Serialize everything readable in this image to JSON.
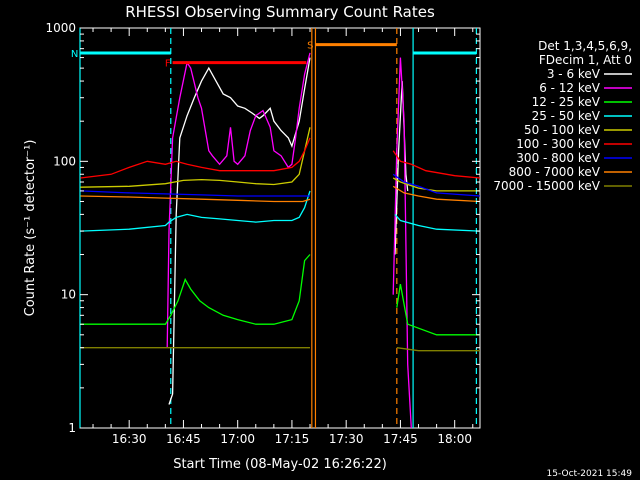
{
  "chart_data": {
    "type": "line",
    "title": "RHESSI Observing Summary Count Rates",
    "xlabel": "Start Time (08-May-02 16:26:22)",
    "ylabel": "Count Rate (s⁻¹ detector⁻¹)",
    "yscale": "log",
    "ylim": [
      1,
      1000
    ],
    "xlim_minutes": [
      16.4,
      127.0
    ],
    "x_ticks": [
      {
        "m": 30,
        "label": "16:30"
      },
      {
        "m": 45,
        "label": "16:45"
      },
      {
        "m": 60,
        "label": "17:00"
      },
      {
        "m": 75,
        "label": "17:15"
      },
      {
        "m": 90,
        "label": "17:30"
      },
      {
        "m": 105,
        "label": "17:45"
      },
      {
        "m": 120,
        "label": "18:00"
      }
    ],
    "y_ticks": [
      {
        "v": 1,
        "label": "1"
      },
      {
        "v": 10,
        "label": "10"
      },
      {
        "v": 100,
        "label": "100"
      },
      {
        "v": 1000,
        "label": "1000"
      }
    ],
    "legend_header": [
      "Det 1,3,4,5,6,9,",
      "FDecim 1, Att 0"
    ],
    "legend_position": "top-right",
    "series": [
      {
        "name": "3 - 6 keV",
        "color": "#ffffff",
        "segments": [
          [
            [
              41.0,
              1.5
            ],
            [
              42.0,
              1.8
            ],
            [
              43.0,
              40
            ],
            [
              44.0,
              150
            ],
            [
              46.0,
              220
            ],
            [
              48.0,
              300
            ],
            [
              50.0,
              400
            ],
            [
              52.0,
              500
            ],
            [
              54.0,
              400
            ],
            [
              56.0,
              320
            ],
            [
              58.0,
              300
            ],
            [
              60.0,
              260
            ],
            [
              62.0,
              250
            ],
            [
              64.0,
              230
            ],
            [
              66.0,
              210
            ],
            [
              67.0,
              220
            ],
            [
              69.0,
              250
            ],
            [
              70.0,
              200
            ],
            [
              72.0,
              170
            ],
            [
              74.0,
              150
            ],
            [
              75.0,
              130
            ],
            [
              77.0,
              200
            ],
            [
              78.5,
              350
            ],
            [
              79.5,
              500
            ],
            [
              80.0,
              600
            ]
          ],
          [
            [
              103.5,
              20
            ],
            [
              104.5,
              120
            ],
            [
              105.5,
              400
            ],
            [
              106.5,
              80
            ],
            [
              107.0,
              60
            ]
          ]
        ]
      },
      {
        "name": "6 - 12 keV",
        "color": "#ff00ff",
        "segments": [
          [
            [
              40.5,
              4
            ],
            [
              41.0,
              30
            ],
            [
              42.0,
              150
            ],
            [
              44.0,
              300
            ],
            [
              46.0,
              550
            ],
            [
              47.0,
              500
            ],
            [
              49.0,
              300
            ],
            [
              50.0,
              250
            ],
            [
              52.0,
              120
            ],
            [
              53.0,
              110
            ],
            [
              55.0,
              95
            ],
            [
              57.0,
              110
            ],
            [
              58.0,
              180
            ],
            [
              59.0,
              100
            ],
            [
              60.0,
              95
            ],
            [
              62.0,
              110
            ],
            [
              63.5,
              170
            ],
            [
              65.0,
              220
            ],
            [
              67.0,
              240
            ],
            [
              69.0,
              180
            ],
            [
              70.0,
              120
            ],
            [
              72.0,
              110
            ],
            [
              74.0,
              90
            ],
            [
              75.0,
              95
            ],
            [
              76.0,
              150
            ],
            [
              77.0,
              250
            ],
            [
              78.5,
              450
            ],
            [
              80.0,
              650
            ]
          ],
          [
            [
              103.0,
              10
            ],
            [
              104.0,
              120
            ],
            [
              105.0,
              600
            ],
            [
              106.0,
              200
            ],
            [
              107.0,
              3
            ],
            [
              108.0,
              1
            ]
          ]
        ]
      },
      {
        "name": "12 - 25 keV",
        "color": "#00ff00",
        "segments": [
          [
            [
              16.5,
              6
            ],
            [
              30.0,
              6
            ],
            [
              40.0,
              6
            ],
            [
              41.5,
              7
            ],
            [
              43.5,
              9
            ],
            [
              45.5,
              13
            ],
            [
              47.0,
              11
            ],
            [
              49.5,
              9
            ],
            [
              52.0,
              8
            ],
            [
              56.0,
              7
            ],
            [
              60.0,
              6.5
            ],
            [
              65.0,
              6
            ],
            [
              70.0,
              6
            ],
            [
              75.0,
              6.5
            ],
            [
              77.0,
              9
            ],
            [
              78.5,
              18
            ],
            [
              80.0,
              20
            ]
          ],
          [
            [
              104.0,
              8
            ],
            [
              105.0,
              12
            ],
            [
              107.0,
              6
            ],
            [
              115.0,
              5
            ],
            [
              127.0,
              5
            ]
          ]
        ]
      },
      {
        "name": "25 - 50 keV",
        "color": "#00ffff",
        "segments": [
          [
            [
              16.5,
              30
            ],
            [
              30.0,
              31
            ],
            [
              40.0,
              33
            ],
            [
              41.0,
              35
            ],
            [
              43.0,
              38
            ],
            [
              46.0,
              40
            ],
            [
              50.0,
              38
            ],
            [
              55.0,
              37
            ],
            [
              60.0,
              36
            ],
            [
              65.0,
              35
            ],
            [
              70.0,
              36
            ],
            [
              75.0,
              36
            ],
            [
              77.0,
              38
            ],
            [
              78.5,
              45
            ],
            [
              80.0,
              60
            ]
          ],
          [
            [
              103.5,
              40
            ],
            [
              105.0,
              36
            ],
            [
              110.0,
              33
            ],
            [
              115.0,
              31
            ],
            [
              127.0,
              30
            ]
          ]
        ]
      },
      {
        "name": "50 - 100 keV",
        "color": "#cccc00",
        "segments": [
          [
            [
              16.5,
              64
            ],
            [
              30.0,
              65
            ],
            [
              40.0,
              68
            ],
            [
              45.0,
              72
            ],
            [
              50.0,
              73
            ],
            [
              55.0,
              72
            ],
            [
              60.0,
              70
            ],
            [
              65.0,
              68
            ],
            [
              70.0,
              67
            ],
            [
              75.0,
              70
            ],
            [
              77.0,
              80
            ],
            [
              78.5,
              120
            ],
            [
              80.0,
              180
            ]
          ],
          [
            [
              103.0,
              75
            ],
            [
              105.0,
              70
            ],
            [
              110.0,
              63
            ],
            [
              115.0,
              60
            ],
            [
              127.0,
              60
            ]
          ]
        ]
      },
      {
        "name": "100 - 300 keV",
        "color": "#ff0000",
        "segments": [
          [
            [
              16.5,
              75
            ],
            [
              25.0,
              80
            ],
            [
              30.0,
              90
            ],
            [
              35.0,
              100
            ],
            [
              40.0,
              95
            ],
            [
              43.0,
              100
            ],
            [
              46.0,
              95
            ],
            [
              50.0,
              90
            ],
            [
              55.0,
              85
            ],
            [
              60.0,
              85
            ],
            [
              65.0,
              85
            ],
            [
              70.0,
              85
            ],
            [
              75.0,
              90
            ],
            [
              77.0,
              100
            ],
            [
              78.5,
              120
            ],
            [
              80.0,
              150
            ]
          ],
          [
            [
              103.0,
              120
            ],
            [
              105.0,
              100
            ],
            [
              108.0,
              95
            ],
            [
              112.0,
              85
            ],
            [
              120.0,
              78
            ],
            [
              127.0,
              75
            ]
          ]
        ]
      },
      {
        "name": "300 - 800 keV",
        "color": "#0000ff",
        "segments": [
          [
            [
              16.5,
              60
            ],
            [
              30.0,
              58
            ],
            [
              40.0,
              57
            ],
            [
              50.0,
              56
            ],
            [
              60.0,
              55
            ],
            [
              70.0,
              55
            ],
            [
              80.0,
              55
            ]
          ],
          [
            [
              103.0,
              80
            ],
            [
              106.0,
              70
            ],
            [
              110.0,
              65
            ],
            [
              115.0,
              58
            ],
            [
              127.0,
              55
            ]
          ]
        ]
      },
      {
        "name": "800 - 7000 keV",
        "color": "#ff8000",
        "segments": [
          [
            [
              16.5,
              55
            ],
            [
              30.0,
              54
            ],
            [
              40.0,
              53
            ],
            [
              50.0,
              52
            ],
            [
              60.0,
              51
            ],
            [
              70.0,
              50
            ],
            [
              78.0,
              50
            ],
            [
              80.0,
              52
            ]
          ],
          [
            [
              103.0,
              65
            ],
            [
              106.0,
              58
            ],
            [
              110.0,
              55
            ],
            [
              115.0,
              52
            ],
            [
              127.0,
              50
            ]
          ]
        ]
      },
      {
        "name": "7000 - 15000 keV",
        "color": "#808000",
        "segments": [
          [
            [
              16.5,
              4
            ],
            [
              30.0,
              4
            ],
            [
              40.0,
              4
            ],
            [
              50.0,
              4
            ],
            [
              60.0,
              4
            ],
            [
              70.0,
              4
            ],
            [
              80.0,
              4
            ]
          ],
          [
            [
              104.0,
              4
            ],
            [
              110.0,
              3.8
            ],
            [
              120.0,
              3.8
            ],
            [
              127.0,
              3.8
            ]
          ]
        ]
      }
    ],
    "attenuator_markers": [
      {
        "label": "F",
        "color": "#ff0000",
        "x_start": 42.0,
        "x_end": 79.0,
        "y": 550
      },
      {
        "label": "S",
        "color": "#ff8000",
        "x_start": 81.5,
        "x_end": 104.0,
        "y": 750
      }
    ],
    "night_markers": [
      {
        "label": "N",
        "color": "#00ffff",
        "x_start": 16.5,
        "x_end": 41.5,
        "y": 650
      },
      {
        "label": "",
        "color": "#00ffff",
        "x_start": 108.5,
        "x_end": 126.0,
        "y": 650
      }
    ],
    "vertical_lines": [
      {
        "x": 16.4,
        "color": "#00ffff",
        "style": "solid"
      },
      {
        "x": 41.5,
        "color": "#00ffff",
        "style": "dashed"
      },
      {
        "x": 80.5,
        "color": "#ff8000",
        "style": "solid"
      },
      {
        "x": 81.5,
        "color": "#ff8000",
        "style": "solid"
      },
      {
        "x": 104.0,
        "color": "#ff8000",
        "style": "dashed"
      },
      {
        "x": 108.5,
        "color": "#00ffff",
        "style": "solid"
      },
      {
        "x": 126.0,
        "color": "#00ffff",
        "style": "dashed"
      }
    ]
  },
  "footer": {
    "timestamp": "15-Oct-2021 15:49"
  }
}
